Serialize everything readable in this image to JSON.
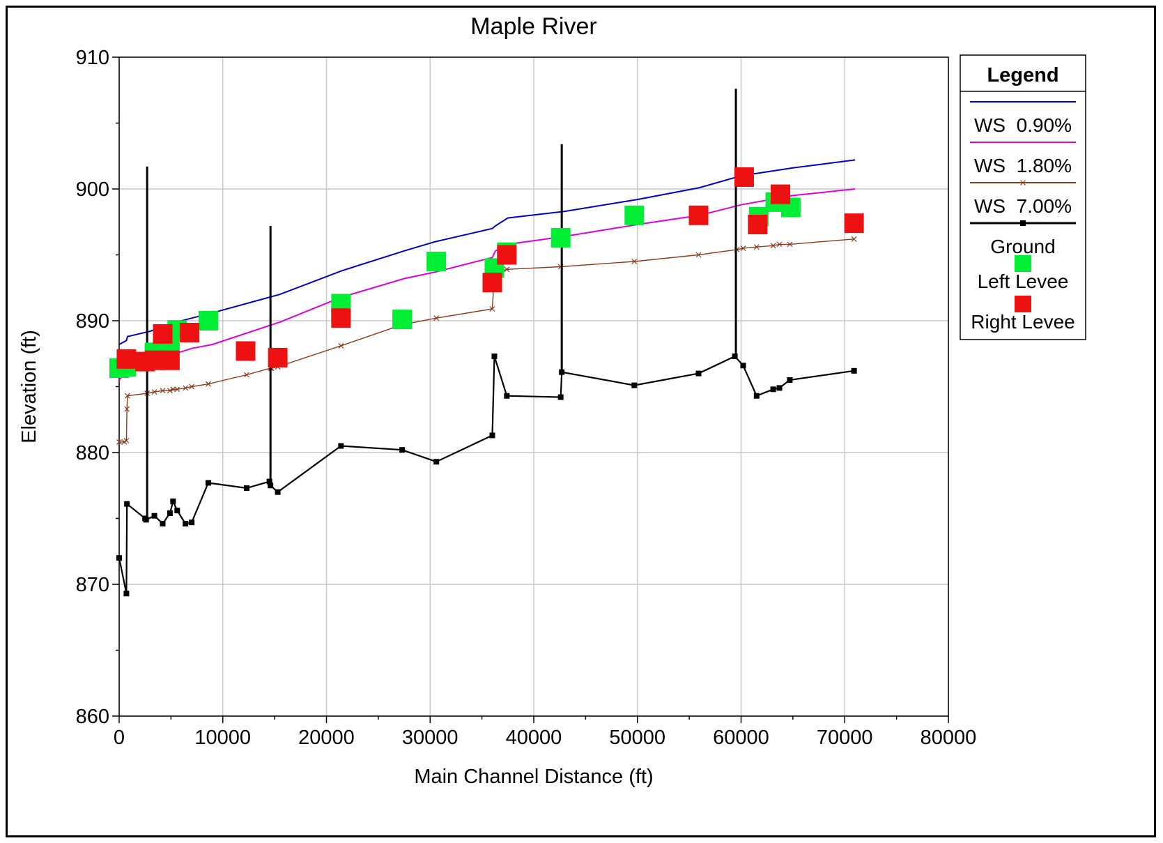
{
  "chart_data": {
    "type": "line",
    "title": "Maple River",
    "xlabel": "Main Channel Distance (ft)",
    "ylabel": "Elevation (ft)",
    "xlim": [
      0,
      80000
    ],
    "ylim": [
      860,
      910
    ],
    "xticks": [
      0,
      10000,
      20000,
      30000,
      40000,
      50000,
      60000,
      70000,
      80000
    ],
    "yticks": [
      860,
      870,
      880,
      890,
      900,
      910
    ],
    "grid": true,
    "legend_title": "Legend",
    "legend_position": "right",
    "series": [
      {
        "name": "WS  0.90%",
        "color": "#0000cc",
        "marker": "none",
        "x": [
          0,
          700,
          800,
          3000,
          5000,
          9000,
          15500,
          21500,
          27500,
          30500,
          36000,
          36300,
          37500,
          43000,
          50000,
          56000,
          60000,
          65000,
          71000
        ],
        "y": [
          888.2,
          888.5,
          888.8,
          889.2,
          889.8,
          890.6,
          892.0,
          893.8,
          895.3,
          896.0,
          897.0,
          897.2,
          897.8,
          898.3,
          899.2,
          900.1,
          901.0,
          901.6,
          902.2
        ]
      },
      {
        "name": "WS  1.80%",
        "color": "#dd00dd",
        "marker": "none",
        "x": [
          0,
          800,
          3000,
          5000,
          7000,
          9000,
          15500,
          21500,
          27500,
          30500,
          36000,
          36300,
          37500,
          43000,
          50000,
          56000,
          60000,
          65000,
          71000
        ],
        "y": [
          885.5,
          886.2,
          887.0,
          887.4,
          887.9,
          888.2,
          889.9,
          891.8,
          893.2,
          893.7,
          894.8,
          895.3,
          895.8,
          896.4,
          897.3,
          898.0,
          898.8,
          899.5,
          900.0
        ]
      },
      {
        "name": "WS  7.00%",
        "color": "#8b3a1a",
        "marker": "x",
        "x": [
          0,
          500,
          700,
          750,
          800,
          2700,
          3400,
          4200,
          4900,
          5200,
          5600,
          6400,
          7000,
          8600,
          12300,
          14600,
          14700,
          15300,
          21400,
          27300,
          30600,
          36000,
          36200,
          37400,
          42600,
          49700,
          55900,
          59600,
          60200,
          61500,
          63100,
          63700,
          64700,
          70900
        ],
        "y": [
          880.8,
          880.8,
          880.9,
          883.3,
          884.3,
          884.5,
          884.6,
          884.7,
          884.7,
          884.8,
          884.8,
          884.9,
          885.0,
          885.2,
          885.9,
          886.4,
          886.4,
          886.5,
          888.1,
          889.7,
          890.2,
          890.9,
          893.6,
          893.9,
          894.1,
          894.5,
          895.0,
          895.4,
          895.5,
          895.6,
          895.7,
          895.8,
          895.8,
          896.2
        ]
      },
      {
        "name": "Ground",
        "color": "#000000",
        "marker": "square",
        "x": [
          0,
          700,
          750,
          2500,
          2600,
          3400,
          4200,
          4900,
          5200,
          5600,
          6400,
          7000,
          8600,
          12300,
          14500,
          14600,
          15300,
          21400,
          27300,
          30600,
          36000,
          36200,
          37400,
          42600,
          42700,
          49700,
          55900,
          59400,
          60200,
          61500,
          63100,
          63700,
          64700,
          70900
        ],
        "y": [
          872.0,
          869.3,
          876.1,
          875.0,
          874.9,
          875.2,
          874.6,
          875.4,
          876.3,
          875.6,
          874.6,
          874.7,
          877.7,
          877.3,
          877.8,
          877.5,
          877.0,
          880.5,
          880.2,
          879.3,
          881.3,
          887.3,
          884.3,
          884.2,
          886.1,
          885.1,
          886.0,
          887.3,
          886.6,
          884.3,
          884.8,
          884.9,
          885.5,
          886.2
        ],
        "spikes": [
          {
            "x": 2700,
            "top": 901.7
          },
          {
            "x": 14600,
            "top": 897.2
          },
          {
            "x": 42700,
            "top": 903.4
          },
          {
            "x": 59500,
            "top": 907.6
          }
        ]
      },
      {
        "name": "Left Levee",
        "color": "#00ee33",
        "marker": "big-square",
        "type": "scatter",
        "x": [
          0,
          700,
          3400,
          4200,
          4900,
          5600,
          8600,
          21400,
          27300,
          30600,
          36200,
          37400,
          42600,
          49700,
          61700,
          63300,
          64800
        ],
        "y": [
          886.4,
          886.5,
          887.6,
          887.7,
          888.3,
          889.3,
          890.0,
          891.3,
          890.1,
          894.5,
          894.0,
          895.2,
          896.3,
          898.0,
          897.9,
          899.0,
          898.6
        ]
      },
      {
        "name": "Right Levee",
        "color": "#ee1111",
        "marker": "big-square",
        "type": "scatter",
        "x": [
          700,
          2500,
          3400,
          4200,
          4900,
          6800,
          12200,
          15300,
          21400,
          36000,
          37400,
          55900,
          60300,
          61600,
          63800,
          70900
        ],
        "y": [
          887.1,
          886.9,
          887.0,
          889.0,
          887.0,
          889.1,
          887.7,
          887.2,
          890.2,
          892.9,
          895.0,
          898.0,
          900.9,
          897.3,
          899.6,
          897.4
        ]
      }
    ]
  }
}
